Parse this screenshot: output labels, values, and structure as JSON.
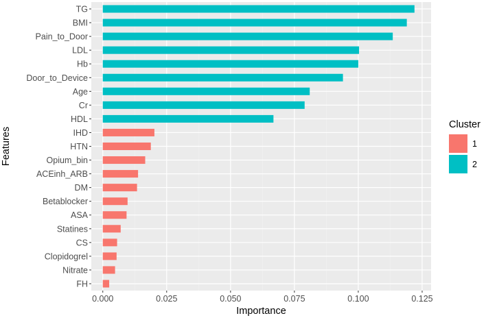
{
  "chart_data": {
    "type": "bar",
    "orientation": "horizontal",
    "xlabel": "Importance",
    "ylabel": "Features",
    "xlim": [
      -0.0045,
      0.1285
    ],
    "xticks": [
      0.0,
      0.025,
      0.05,
      0.075,
      0.1,
      0.125
    ],
    "xtick_labels": [
      "0.000",
      "0.025",
      "0.050",
      "0.075",
      "0.100",
      "0.125"
    ],
    "grid": true,
    "legend": {
      "title": "Cluster",
      "placement": "right",
      "entries": [
        {
          "label": "1",
          "color": "#F8766D"
        },
        {
          "label": "2",
          "color": "#00BFC4"
        }
      ]
    },
    "bars": [
      {
        "feature": "TG",
        "value": 0.122,
        "cluster": "2"
      },
      {
        "feature": "BMI",
        "value": 0.119,
        "cluster": "2"
      },
      {
        "feature": "Pain_to_Door",
        "value": 0.1135,
        "cluster": "2"
      },
      {
        "feature": "LDL",
        "value": 0.1003,
        "cluster": "2"
      },
      {
        "feature": "Hb",
        "value": 0.1,
        "cluster": "2"
      },
      {
        "feature": "Door_to_Device",
        "value": 0.094,
        "cluster": "2"
      },
      {
        "feature": "Age",
        "value": 0.081,
        "cluster": "2"
      },
      {
        "feature": "Cr",
        "value": 0.079,
        "cluster": "2"
      },
      {
        "feature": "HDL",
        "value": 0.0668,
        "cluster": "2"
      },
      {
        "feature": "IHD",
        "value": 0.0202,
        "cluster": "1"
      },
      {
        "feature": "HTN",
        "value": 0.0188,
        "cluster": "1"
      },
      {
        "feature": "Opium_bin",
        "value": 0.0166,
        "cluster": "1"
      },
      {
        "feature": "ACEinh_ARB",
        "value": 0.0138,
        "cluster": "1"
      },
      {
        "feature": "DM",
        "value": 0.0134,
        "cluster": "1"
      },
      {
        "feature": "Betablocker",
        "value": 0.0097,
        "cluster": "1"
      },
      {
        "feature": "ASA",
        "value": 0.0093,
        "cluster": "1"
      },
      {
        "feature": "Statines",
        "value": 0.007,
        "cluster": "1"
      },
      {
        "feature": "CS",
        "value": 0.0056,
        "cluster": "1"
      },
      {
        "feature": "Clopidogrel",
        "value": 0.0054,
        "cluster": "1"
      },
      {
        "feature": "Nitrate",
        "value": 0.0048,
        "cluster": "1"
      },
      {
        "feature": "FH",
        "value": 0.0025,
        "cluster": "1"
      }
    ]
  },
  "colors": {
    "panel_background": "#EBEBEB",
    "grid_major": "#FFFFFF",
    "grid_minor": "#F2F2F2",
    "cluster_1": "#F8766D",
    "cluster_2": "#00BFC4"
  }
}
